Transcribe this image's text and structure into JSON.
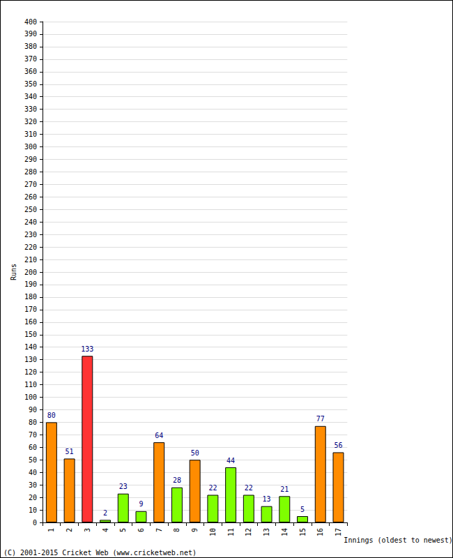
{
  "chart_data": {
    "type": "bar",
    "x_label": "Innings (oldest to newest)",
    "y_label": "Runs",
    "annotations": [
      "(C) 2001-2015 Cricket Web (www.cricketweb.net)"
    ],
    "categories": [
      "1",
      "2",
      "3",
      "4",
      "5",
      "6",
      "7",
      "8",
      "9",
      "10",
      "11",
      "12",
      "13",
      "14",
      "15",
      "16",
      "17"
    ],
    "values": [
      80,
      51,
      133,
      2,
      23,
      9,
      64,
      28,
      50,
      22,
      44,
      22,
      13,
      21,
      5,
      77,
      56
    ],
    "colors": [
      "#ff8c00",
      "#ff8c00",
      "#ff3333",
      "#7fff00",
      "#7fff00",
      "#7fff00",
      "#ff8c00",
      "#7fff00",
      "#ff8c00",
      "#7fff00",
      "#7fff00",
      "#7fff00",
      "#7fff00",
      "#7fff00",
      "#7fff00",
      "#ff8c00",
      "#ff8c00"
    ],
    "ylim": [
      0,
      400
    ],
    "yticks": [
      0,
      10,
      20,
      30,
      40,
      50,
      60,
      70,
      80,
      90,
      100,
      110,
      120,
      130,
      140,
      150,
      160,
      170,
      180,
      190,
      200,
      210,
      220,
      230,
      240,
      250,
      260,
      270,
      280,
      290,
      300,
      310,
      320,
      330,
      340,
      350,
      360,
      370,
      380,
      390,
      400
    ],
    "grid": true,
    "data_labels": true
  }
}
